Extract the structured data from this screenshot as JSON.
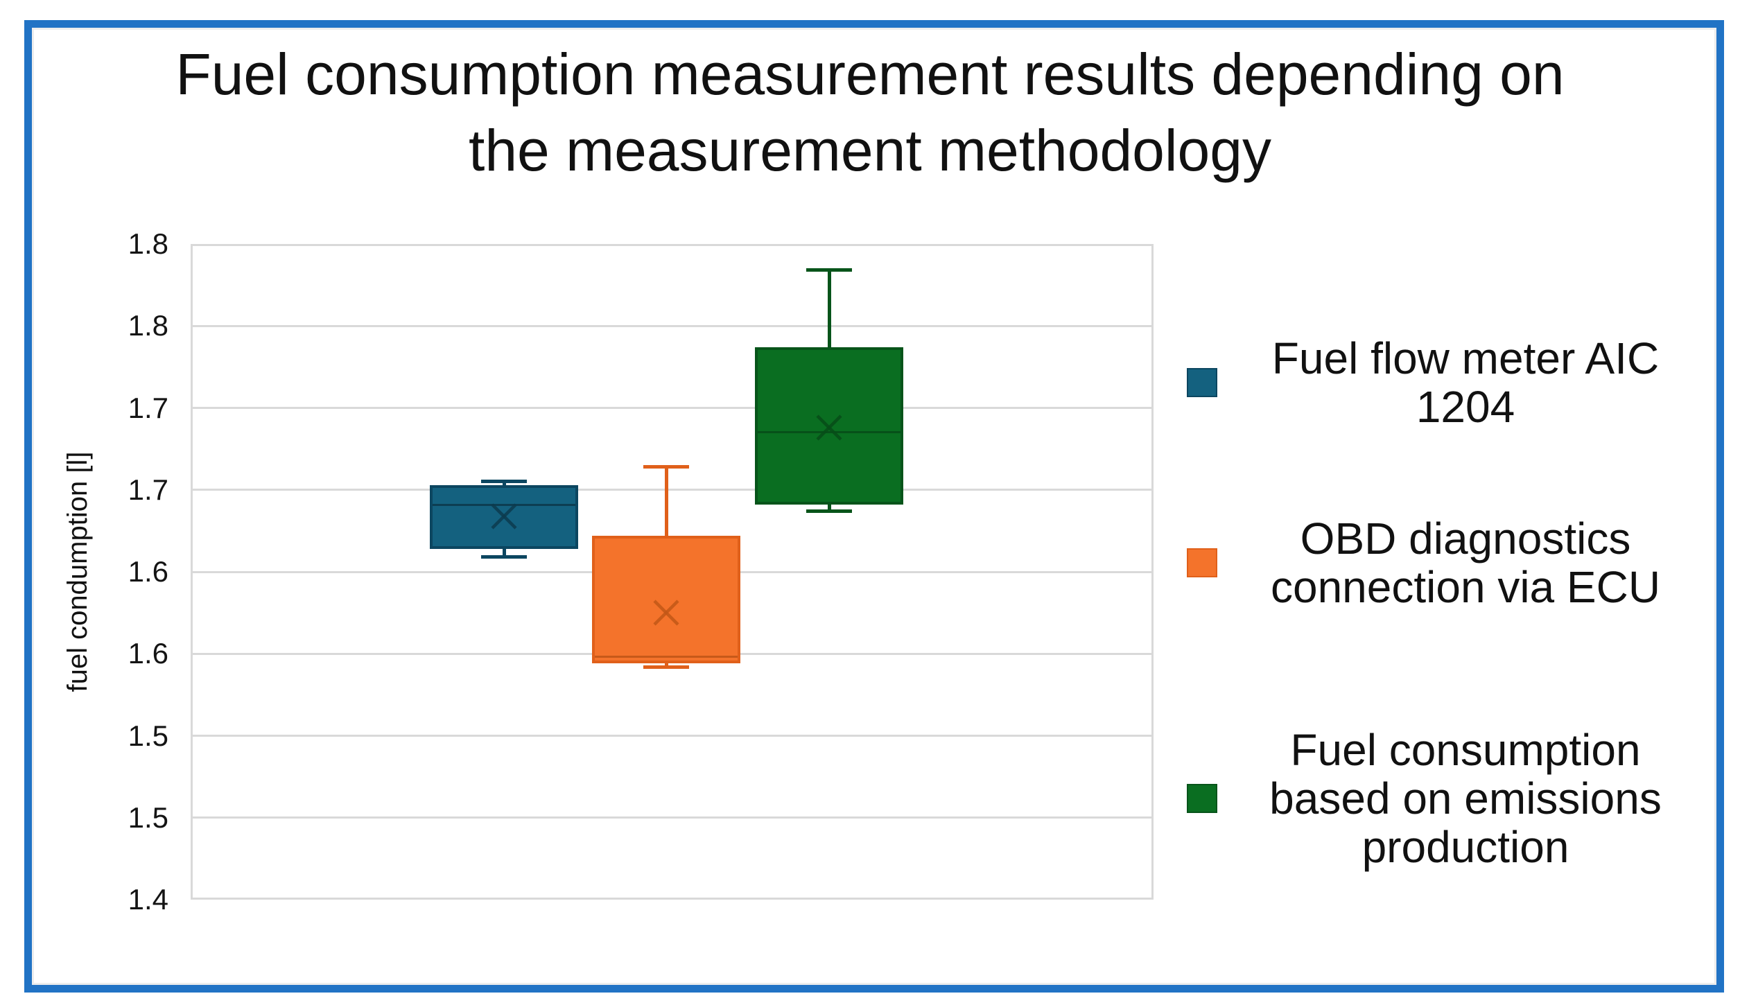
{
  "title": {
    "text": "Fuel consumption measurement results depending on the measurement methodology",
    "lines": [
      "Fuel consumption measurement results depending on",
      "the measurement methodology"
    ]
  },
  "y_axis": {
    "title": "fuel condumption [l]"
  },
  "legend": {
    "items": [
      {
        "label": "Fuel flow meter AIC 1204",
        "lines": [
          "Fuel flow meter AIC",
          "1204"
        ]
      },
      {
        "label": "OBD diagnostics connection via ECU",
        "lines": [
          "OBD diagnostics",
          "connection via ECU"
        ]
      },
      {
        "label": "Fuel consumption based on emissions production",
        "lines": [
          "Fuel consumption",
          "based on emissions",
          "production"
        ]
      }
    ]
  },
  "colors": {
    "frame_border": "#2173C5",
    "gridline": "#D9D9D9",
    "text": "#111111"
  },
  "chart_data": {
    "type": "box",
    "title": "Fuel consumption measurement results depending on the measurement methodology",
    "ylabel": "fuel condumption [l]",
    "ylim": [
      1.4,
      1.8
    ],
    "ytick_step": 0.05,
    "ytick_display": [
      "1.8",
      "1.8",
      "1.7",
      "1.7",
      "1.6",
      "1.6",
      "1.5",
      "1.5",
      "1.4"
    ],
    "grid": "horizontal",
    "legend_position": "right",
    "series": [
      {
        "name": "Fuel flow meter AIC 1204",
        "color": "#14617F",
        "border_color": "#0C4660",
        "detail_color": "#0C3B4E",
        "min": 1.609,
        "q1": 1.614,
        "median": 1.641,
        "mean": 1.634,
        "q3": 1.653,
        "max": 1.655
      },
      {
        "name": "OBD diagnostics connection via ECU",
        "color": "#F4732B",
        "border_color": "#E0601A",
        "detail_color": "#C25717",
        "min": 1.542,
        "q1": 1.544,
        "median": 1.548,
        "mean": 1.575,
        "q3": 1.622,
        "max": 1.664
      },
      {
        "name": "Fuel consumption based on emissions production",
        "color": "#0A6E21",
        "border_color": "#07541A",
        "detail_color": "#074D18",
        "min": 1.637,
        "q1": 1.641,
        "median": 1.685,
        "mean": 1.688,
        "q3": 1.737,
        "max": 1.784
      }
    ]
  }
}
